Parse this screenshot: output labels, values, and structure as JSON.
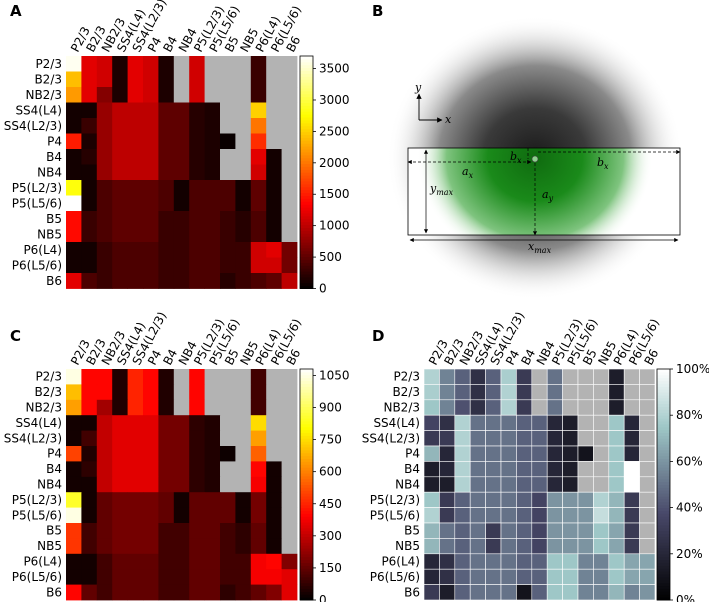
{
  "panels": {
    "A": {
      "label": "A"
    },
    "B": {
      "label": "B"
    },
    "C": {
      "label": "C"
    },
    "D": {
      "label": "D"
    }
  },
  "chart_data": [
    {
      "id": "A",
      "type": "heatmap",
      "rows": [
        "P2/3",
        "B2/3",
        "NB2/3",
        "SS4(L4)",
        "SS4(L2/3)",
        "P4",
        "B4",
        "NB4",
        "P5(L2/3)",
        "P5(L5/6)",
        "B5",
        "NB5",
        "P6(L4)",
        "P6(L5/6)",
        "B6"
      ],
      "cols": [
        "P2/3",
        "B2/3",
        "NB2/3",
        "SS4(L4)",
        "SS4(L2/3)",
        "P4",
        "B4",
        "NB4",
        "P5(L2/3)",
        "P5(L5/6)",
        "B5",
        "NB5",
        "P6(L4)",
        "P6(L5/6)",
        "B6"
      ],
      "colormap": "hot",
      "vmin": 0,
      "vmax": 3700,
      "colorbar_ticks": [
        0,
        500,
        1000,
        1500,
        2000,
        2500,
        3000,
        3500
      ],
      "missing_value_color": "#b3b3b3",
      "values": [
        [
          3650,
          1200,
          1100,
          150,
          1200,
          1100,
          150,
          null,
          1100,
          null,
          null,
          null,
          300,
          null,
          null
        ],
        [
          2400,
          1200,
          1100,
          150,
          1200,
          1100,
          150,
          null,
          1100,
          null,
          null,
          null,
          300,
          null,
          null
        ],
        [
          2200,
          1200,
          700,
          150,
          1200,
          1100,
          150,
          null,
          1100,
          null,
          null,
          null,
          300,
          null,
          null
        ],
        [
          100,
          100,
          800,
          1000,
          1000,
          1000,
          500,
          500,
          200,
          150,
          null,
          null,
          2500,
          null,
          null
        ],
        [
          100,
          300,
          800,
          1000,
          1000,
          1000,
          500,
          500,
          200,
          150,
          null,
          null,
          2000,
          null,
          null
        ],
        [
          1500,
          150,
          800,
          1000,
          1000,
          1000,
          500,
          500,
          200,
          150,
          50,
          null,
          1600,
          null,
          null
        ],
        [
          100,
          200,
          800,
          1000,
          1000,
          1000,
          500,
          500,
          200,
          150,
          null,
          null,
          1200,
          100,
          null
        ],
        [
          100,
          100,
          800,
          1000,
          1000,
          1000,
          500,
          500,
          200,
          150,
          null,
          null,
          1100,
          100,
          null
        ],
        [
          2800,
          100,
          400,
          500,
          500,
          500,
          400,
          100,
          400,
          400,
          400,
          100,
          500,
          100,
          null
        ],
        [
          3700,
          100,
          400,
          500,
          500,
          500,
          400,
          100,
          400,
          400,
          400,
          100,
          500,
          100,
          null
        ],
        [
          1400,
          300,
          400,
          500,
          500,
          500,
          300,
          300,
          400,
          400,
          300,
          200,
          400,
          100,
          null
        ],
        [
          1400,
          300,
          400,
          500,
          500,
          500,
          300,
          300,
          400,
          400,
          300,
          200,
          400,
          100,
          null
        ],
        [
          100,
          100,
          300,
          400,
          400,
          400,
          300,
          300,
          400,
          400,
          300,
          300,
          1100,
          1200,
          600
        ],
        [
          100,
          100,
          300,
          400,
          400,
          400,
          300,
          300,
          400,
          400,
          300,
          300,
          1100,
          1100,
          600
        ],
        [
          1200,
          400,
          300,
          400,
          400,
          400,
          300,
          300,
          400,
          400,
          200,
          300,
          400,
          500,
          1000
        ]
      ]
    },
    {
      "id": "C",
      "type": "heatmap",
      "rows": [
        "P2/3",
        "B2/3",
        "NB2/3",
        "SS4(L4)",
        "SS4(L2/3)",
        "P4",
        "B4",
        "NB4",
        "P5(L2/3)",
        "P5(L5/6)",
        "B5",
        "NB5",
        "P6(L4)",
        "P6(L5/6)",
        "B6"
      ],
      "cols": [
        "P2/3",
        "B2/3",
        "NB2/3",
        "SS4(L4)",
        "SS4(L2/3)",
        "P4",
        "B4",
        "NB4",
        "P5(L2/3)",
        "P5(L5/6)",
        "B5",
        "NB5",
        "P6(L4)",
        "P6(L5/6)",
        "B6"
      ],
      "colormap": "hot",
      "vmin": 0,
      "vmax": 1080,
      "colorbar_ticks": [
        0,
        150,
        300,
        450,
        600,
        750,
        900,
        1050
      ],
      "missing_value_color": "#b3b3b3",
      "values": [
        [
          1050,
          400,
          400,
          50,
          450,
          400,
          50,
          null,
          400,
          null,
          null,
          null,
          100,
          null,
          null
        ],
        [
          700,
          400,
          400,
          50,
          450,
          400,
          50,
          null,
          400,
          null,
          null,
          null,
          100,
          null,
          null
        ],
        [
          650,
          400,
          250,
          50,
          450,
          400,
          50,
          null,
          400,
          null,
          null,
          null,
          100,
          null,
          null
        ],
        [
          30,
          30,
          300,
          350,
          350,
          350,
          180,
          180,
          70,
          50,
          null,
          null,
          750,
          null,
          null
        ],
        [
          30,
          100,
          300,
          350,
          350,
          350,
          180,
          180,
          70,
          50,
          null,
          null,
          650,
          null,
          null
        ],
        [
          500,
          50,
          300,
          350,
          350,
          350,
          180,
          180,
          70,
          50,
          20,
          null,
          550,
          null,
          null
        ],
        [
          30,
          70,
          300,
          350,
          350,
          350,
          180,
          180,
          70,
          50,
          null,
          null,
          400,
          30,
          null
        ],
        [
          30,
          30,
          300,
          350,
          350,
          350,
          180,
          180,
          70,
          50,
          null,
          null,
          380,
          30,
          null
        ],
        [
          850,
          30,
          150,
          180,
          180,
          180,
          150,
          30,
          150,
          150,
          150,
          30,
          180,
          30,
          null
        ],
        [
          1050,
          30,
          150,
          180,
          180,
          180,
          150,
          30,
          150,
          150,
          150,
          30,
          180,
          30,
          null
        ],
        [
          480,
          100,
          150,
          180,
          180,
          180,
          100,
          100,
          150,
          150,
          100,
          70,
          150,
          30,
          null
        ],
        [
          480,
          100,
          150,
          180,
          180,
          180,
          100,
          100,
          150,
          150,
          100,
          70,
          150,
          30,
          null
        ],
        [
          30,
          30,
          100,
          150,
          150,
          150,
          100,
          100,
          150,
          150,
          100,
          100,
          380,
          400,
          200
        ],
        [
          30,
          30,
          100,
          150,
          150,
          150,
          100,
          100,
          150,
          150,
          100,
          100,
          380,
          380,
          350
        ],
        [
          400,
          150,
          100,
          150,
          150,
          150,
          100,
          100,
          150,
          150,
          70,
          100,
          150,
          200,
          350
        ]
      ]
    },
    {
      "id": "D",
      "type": "heatmap",
      "rows": [
        "P2/3",
        "B2/3",
        "NB2/3",
        "SS4(L4)",
        "SS4(L2/3)",
        "P4",
        "B4",
        "NB4",
        "P5(L2/3)",
        "P5(L5/6)",
        "B5",
        "NB5",
        "P6(L4)",
        "P6(L5/6)",
        "B6"
      ],
      "cols": [
        "P2/3",
        "B2/3",
        "NB2/3",
        "SS4(L4)",
        "SS4(L2/3)",
        "P4",
        "B4",
        "NB4",
        "P5(L2/3)",
        "P5(L5/6)",
        "B5",
        "NB5",
        "P6(L4)",
        "P6(L5/6)",
        "B6"
      ],
      "colormap": "bone",
      "vmin": 0,
      "vmax": 100,
      "colorbar_ticks": [
        0,
        20,
        40,
        60,
        80,
        100
      ],
      "colorbar_tick_labels": [
        "0%",
        "20%",
        "40%",
        "60%",
        "80%",
        "100%"
      ],
      "missing_value_color": "#b3b3b3",
      "values": [
        [
          80,
          55,
          45,
          25,
          45,
          78,
          30,
          null,
          50,
          null,
          null,
          null,
          15,
          null,
          null
        ],
        [
          78,
          55,
          45,
          25,
          45,
          80,
          30,
          null,
          50,
          null,
          null,
          null,
          15,
          null,
          null
        ],
        [
          75,
          55,
          40,
          25,
          45,
          80,
          30,
          null,
          50,
          null,
          null,
          null,
          15,
          null,
          null
        ],
        [
          35,
          25,
          80,
          50,
          50,
          50,
          45,
          45,
          20,
          15,
          null,
          null,
          75,
          20,
          null
        ],
        [
          30,
          30,
          80,
          50,
          50,
          50,
          45,
          45,
          20,
          15,
          null,
          null,
          75,
          20,
          null
        ],
        [
          70,
          20,
          80,
          50,
          50,
          50,
          45,
          45,
          20,
          15,
          10,
          null,
          75,
          20,
          null
        ],
        [
          15,
          20,
          80,
          50,
          50,
          50,
          45,
          45,
          20,
          15,
          null,
          null,
          75,
          100,
          null
        ],
        [
          15,
          15,
          80,
          50,
          50,
          50,
          45,
          45,
          20,
          15,
          null,
          null,
          75,
          100,
          null
        ],
        [
          75,
          30,
          45,
          50,
          50,
          50,
          45,
          35,
          60,
          60,
          60,
          80,
          70,
          30,
          null
        ],
        [
          80,
          30,
          45,
          50,
          50,
          50,
          45,
          35,
          60,
          60,
          60,
          85,
          70,
          30,
          null
        ],
        [
          70,
          50,
          45,
          50,
          30,
          50,
          45,
          35,
          60,
          60,
          60,
          75,
          65,
          30,
          null
        ],
        [
          70,
          50,
          45,
          50,
          30,
          50,
          45,
          35,
          60,
          60,
          60,
          75,
          65,
          30,
          null
        ],
        [
          20,
          25,
          45,
          50,
          50,
          50,
          45,
          45,
          75,
          75,
          55,
          55,
          75,
          65,
          65
        ],
        [
          20,
          25,
          45,
          50,
          50,
          50,
          45,
          45,
          75,
          75,
          55,
          55,
          75,
          65,
          65
        ],
        [
          30,
          15,
          45,
          50,
          50,
          50,
          10,
          45,
          75,
          75,
          55,
          55,
          70,
          55,
          60
        ]
      ]
    }
  ],
  "diagram_B": {
    "axis_labels": {
      "y": "y",
      "x": "x"
    },
    "annotations": {
      "bx_small": "b",
      "bx_small_sub": "x",
      "bx_big": "b",
      "bx_big_sub": "x",
      "ax": "a",
      "ax_sub": "x",
      "ay": "a",
      "ay_sub": "y",
      "ymax": "y",
      "ymax_sub": "max",
      "xmax": "x",
      "xmax_sub": "max"
    }
  }
}
